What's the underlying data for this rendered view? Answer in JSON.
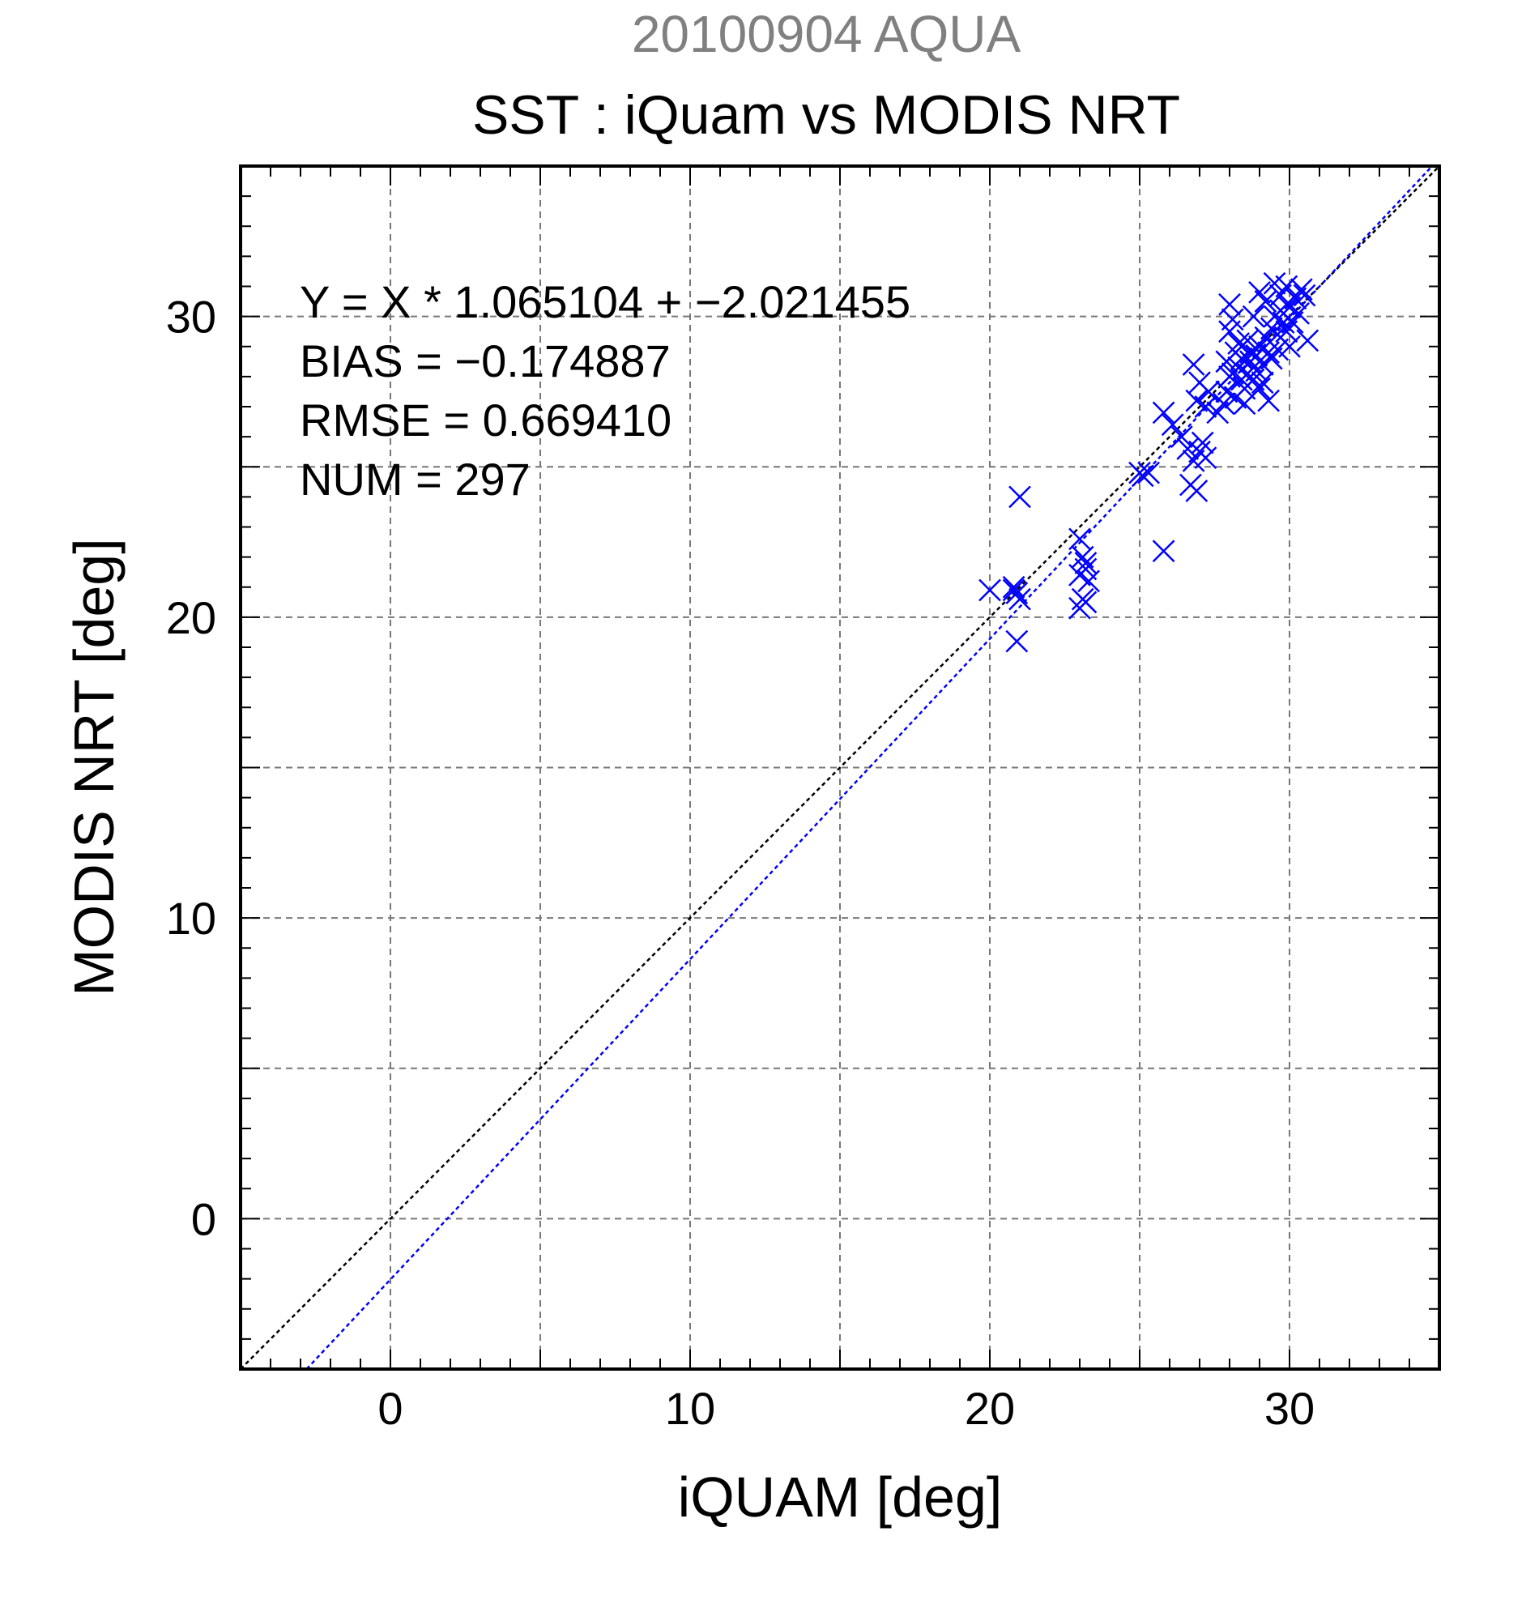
{
  "chart_data": {
    "type": "scatter",
    "subtitle": "20100904 AQUA",
    "title": "SST : iQuam vs MODIS NRT",
    "xlabel": "iQUAM [deg]",
    "ylabel": "MODIS NRT [deg]",
    "xlim": [
      -5,
      35
    ],
    "ylim": [
      -5,
      35
    ],
    "xticks": [
      0,
      10,
      20,
      30
    ],
    "yticks": [
      0,
      10,
      20,
      30
    ],
    "grid": true,
    "stats": {
      "fit": "Y = X * 1.065104 + −2.021455",
      "bias": "BIAS = −0.174887",
      "rmse": "RMSE = 0.669410",
      "num": "NUM = 297"
    },
    "regression": {
      "slope": 1.065104,
      "intercept": -2.021455
    },
    "colors": {
      "points": "#0000ff",
      "identity_line": "#000000",
      "fit_line": "#0000ff",
      "grid": "#777777",
      "subtitle": "#808080"
    },
    "series": [
      {
        "marker": "x",
        "points": [
          [
            20.0,
            20.9
          ],
          [
            20.8,
            21.0
          ],
          [
            20.9,
            20.8
          ],
          [
            20.8,
            20.9
          ],
          [
            21.0,
            20.6
          ],
          [
            20.9,
            19.2
          ],
          [
            21.0,
            24.0
          ],
          [
            23.0,
            22.6
          ],
          [
            23.1,
            22.0
          ],
          [
            23.2,
            21.6
          ],
          [
            23.0,
            21.4
          ],
          [
            23.3,
            21.2
          ],
          [
            23.1,
            20.6
          ],
          [
            23.0,
            20.3
          ],
          [
            23.2,
            20.5
          ],
          [
            23.2,
            21.8
          ],
          [
            25.0,
            24.8
          ],
          [
            25.1,
            24.7
          ],
          [
            25.3,
            24.8
          ],
          [
            25.8,
            22.2
          ],
          [
            25.8,
            26.8
          ],
          [
            26.1,
            26.4
          ],
          [
            26.4,
            26.0
          ],
          [
            26.6,
            25.6
          ],
          [
            26.8,
            25.2
          ],
          [
            26.7,
            24.4
          ],
          [
            26.9,
            24.2
          ],
          [
            27.0,
            25.5
          ],
          [
            27.2,
            25.3
          ],
          [
            27.1,
            25.8
          ],
          [
            26.9,
            27.2
          ],
          [
            27.2,
            27.0
          ],
          [
            26.8,
            28.4
          ],
          [
            27.0,
            27.8
          ],
          [
            27.3,
            27.5
          ],
          [
            27.6,
            26.8
          ],
          [
            27.8,
            27.1
          ],
          [
            27.9,
            27.5
          ],
          [
            28.0,
            28.0
          ],
          [
            28.0,
            30.4
          ],
          [
            28.1,
            29.9
          ],
          [
            28.0,
            29.5
          ],
          [
            28.2,
            28.8
          ],
          [
            28.3,
            28.3
          ],
          [
            28.4,
            28.6
          ],
          [
            28.5,
            27.6
          ],
          [
            28.6,
            28.1
          ],
          [
            28.7,
            28.5
          ],
          [
            28.8,
            27.9
          ],
          [
            28.9,
            28.7
          ],
          [
            29.0,
            29.0
          ],
          [
            29.1,
            28.4
          ],
          [
            29.2,
            29.3
          ],
          [
            29.3,
            28.8
          ],
          [
            29.4,
            29.6
          ],
          [
            29.5,
            30.0
          ],
          [
            29.6,
            29.4
          ],
          [
            29.7,
            30.2
          ],
          [
            29.8,
            29.8
          ],
          [
            29.9,
            29.5
          ],
          [
            30.0,
            30.3
          ],
          [
            30.1,
            29.8
          ],
          [
            30.2,
            30.6
          ],
          [
            30.3,
            30.1
          ],
          [
            30.4,
            30.9
          ],
          [
            30.5,
            30.7
          ],
          [
            30.6,
            29.2
          ],
          [
            29.3,
            27.2
          ],
          [
            29.0,
            27.6
          ],
          [
            28.5,
            27.1
          ],
          [
            28.2,
            27.3
          ],
          [
            27.9,
            28.5
          ],
          [
            28.6,
            29.2
          ],
          [
            28.8,
            30.0
          ],
          [
            29.0,
            30.8
          ],
          [
            29.2,
            30.5
          ],
          [
            29.5,
            31.1
          ],
          [
            29.7,
            30.7
          ],
          [
            29.9,
            31.0
          ],
          [
            30.0,
            29.0
          ],
          [
            29.6,
            28.9
          ],
          [
            29.4,
            28.6
          ],
          [
            29.1,
            27.8
          ],
          [
            28.9,
            28.2
          ],
          [
            28.4,
            27.9
          ],
          [
            28.1,
            28.1
          ],
          [
            28.3,
            29.1
          ],
          [
            28.7,
            28.8
          ]
        ]
      }
    ]
  }
}
